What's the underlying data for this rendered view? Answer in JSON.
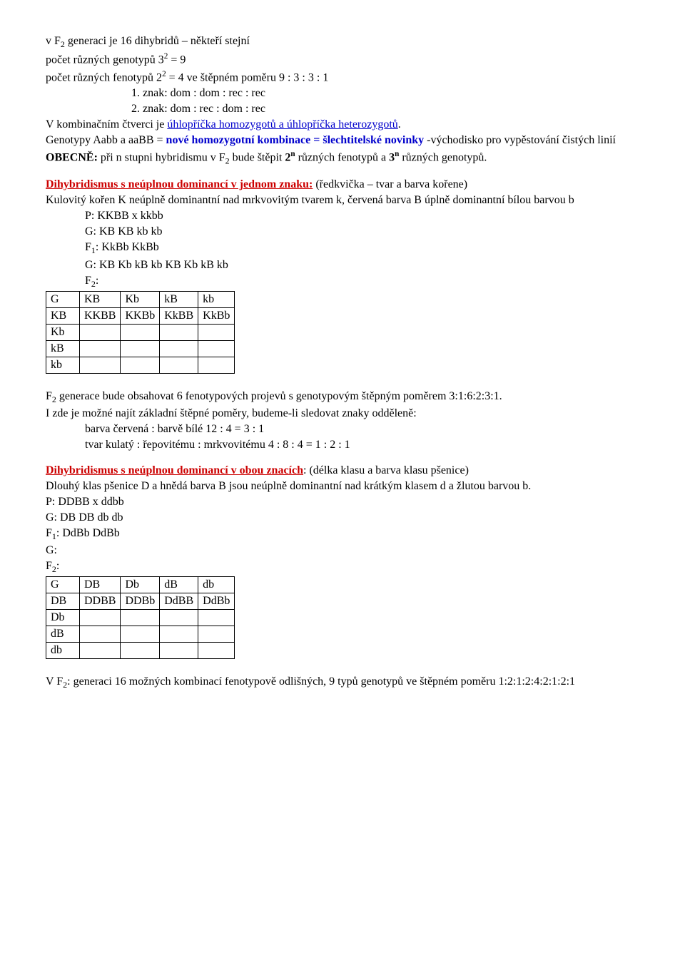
{
  "intro": {
    "l1a": "v F",
    "l1b": " generaci je 16 dihybridů – někteří stejní",
    "l2a": "počet různých genotypů  3",
    "l2b": " = 9",
    "l3a": "počet různých fenotypů  2",
    "l3b": " = 4 ve štěpném poměru   9 : 3 : 3 : 1",
    "l4": "1. znak:    dom : dom : rec : rec",
    "l5": "2. znak:    dom : rec : dom : rec",
    "comb1": "V kombinačním čtverci je ",
    "comb2": "úhlopříčka homozygotů a úhlopříčka heterozygotů",
    "comb3": ".",
    "gen1": "Genotypy  Aabb    a    aaBB  =  ",
    "gen2": "nové  homozygotní  kombinace  =  šlechtitelské  novinky",
    "gen3": "    -východisko pro vypěstování čistých linií",
    "ob1": "OBECNĚ:",
    "ob2": "  při n stupni hybridismu  v F",
    "ob3": " bude štěpit   ",
    "ob4": "2",
    "ob5": " různých fenotypů a   ",
    "ob6": "3",
    "ob7": " různých genotypů."
  },
  "sec1": {
    "title": "Dihybridismus s neúplnou dominancí v jednom znaku:",
    "title_rest": "  (ředkvička – tvar a barva kořene)",
    "p1": "Kulovitý kořen K neúplně dominantní nad  mrkvovitým  tvarem k,   červená barva B úplně dominantní bílou barvou  b",
    "P": "P:        KKBB            x            kkbb",
    "G1": "G:        KB    KB                   kb    kb",
    "F1a": "F",
    "F1b": ":           KkBb                       KkBb",
    "G2": "G:   KB   Kb  kB  kb       KB   Kb   kB   kb",
    "F2a": "F",
    "F2b": ":",
    "table": {
      "r0": [
        "G",
        "KB",
        "Kb",
        "kB",
        "kb"
      ],
      "r1": [
        "KB",
        "KKBB",
        "KKBb",
        "KkBB",
        "KkBb"
      ],
      "r2": [
        "Kb",
        "",
        "",
        "",
        ""
      ],
      "r3": [
        "kB",
        "",
        "",
        "",
        ""
      ],
      "r4": [
        "kb",
        "",
        "",
        "",
        ""
      ]
    },
    "after1": "F",
    "after1b": "  generace  bude  obsahovat  6  fenotypových  projevů  s  genotypovým  štěpným  poměrem 3:1:6:2:3:1.",
    "after2": "I zde je možné najít základní štěpné poměry, budeme-li sledovat znaky odděleně:",
    "after3": "barva červená : barvě bílé      12 : 4  =  3 : 1",
    "after4": "tvar kulatý : řepovitému : mrkvovitému   4 : 8 : 4  =  1 : 2 : 1"
  },
  "sec2": {
    "title": "Dihybridismus s neúplnou dominancí v obou znacích",
    "title_rest": ": (délka klasu a barva klasu pšenice)",
    "p1": "Dlouhý klas pšenice D a hnědá barva B jsou neúplně dominantní nad krátkým klasem d  a žlutou barvou b.",
    "P": "P:      DDBB              x             ddbb",
    "G1": "G:    DB    DB                    db    db",
    "F1a": "F",
    "F1b": ":        DdBb                        DdBb",
    "Gline": "G:",
    "F2a": "F",
    "F2b": ":",
    "table": {
      "r0": [
        "G",
        "DB",
        "Db",
        "dB",
        "db"
      ],
      "r1": [
        "DB",
        "DDBB",
        "DDBb",
        "DdBB",
        "DdBb"
      ],
      "r2": [
        "Db",
        "",
        "",
        "",
        ""
      ],
      "r3": [
        "dB",
        "",
        "",
        "",
        ""
      ],
      "r4": [
        "db",
        "",
        "",
        "",
        ""
      ]
    },
    "after1a": "V F",
    "after1b": ": generaci 16 možných kombinací fenotypově odlišných, 9 typů genotypů ve štěpném poměru 1:2:1:2:4:2:1:2:1"
  }
}
